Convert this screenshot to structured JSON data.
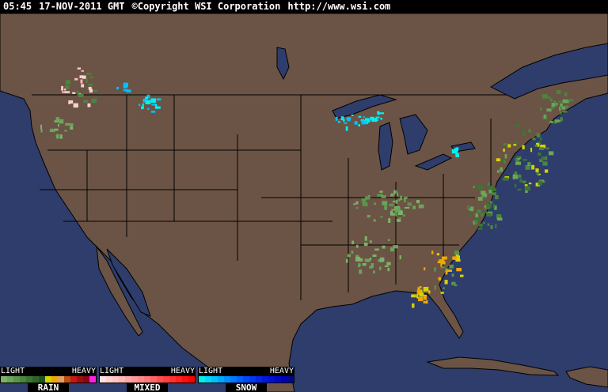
{
  "header": {
    "time": "05:45",
    "date": "17-NOV-2011 GMT",
    "copyright": "©Copyright WSI Corporation",
    "url": "http://www.wsi.com"
  },
  "map": {
    "type": "weather radar mosaic",
    "region": "continental United States",
    "colors": {
      "ocean": "#2e3d6b",
      "land": "#6b5445",
      "borders": "#000000"
    }
  },
  "legend": [
    {
      "name": "RAIN",
      "light": "LIGHT",
      "heavy": "HEAVY",
      "colors": [
        "#7eb26a",
        "#6ca45a",
        "#5a954c",
        "#4a843f",
        "#3c7533",
        "#2d6527",
        "#1f541c",
        "#d4d400",
        "#f0a800",
        "#e0a060",
        "#b85010",
        "#c81818",
        "#a01010",
        "#880818",
        "#ff20e0"
      ]
    },
    {
      "name": "MIXED",
      "light": "LIGHT",
      "heavy": "HEAVY",
      "colors": [
        "#ffe0e0",
        "#ffd0d0",
        "#ffc4c4",
        "#ffb8b8",
        "#ffa8a8",
        "#ff9898",
        "#ff8888",
        "#ff7878",
        "#ff6464",
        "#ff5050",
        "#ff4040",
        "#ff3030",
        "#ff2020",
        "#ff1010",
        "#ff0000"
      ]
    },
    {
      "name": "SNOW",
      "light": "LIGHT",
      "heavy": "HEAVY",
      "colors": [
        "#00f0f0",
        "#00d8f8",
        "#00c0ff",
        "#00a8ff",
        "#0090ff",
        "#0078ff",
        "#0060ff",
        "#0048f8",
        "#0038f0",
        "#0028e8",
        "#0018e0",
        "#0010d0",
        "#0008c0",
        "#0000b0",
        "#000890"
      ]
    }
  ]
}
